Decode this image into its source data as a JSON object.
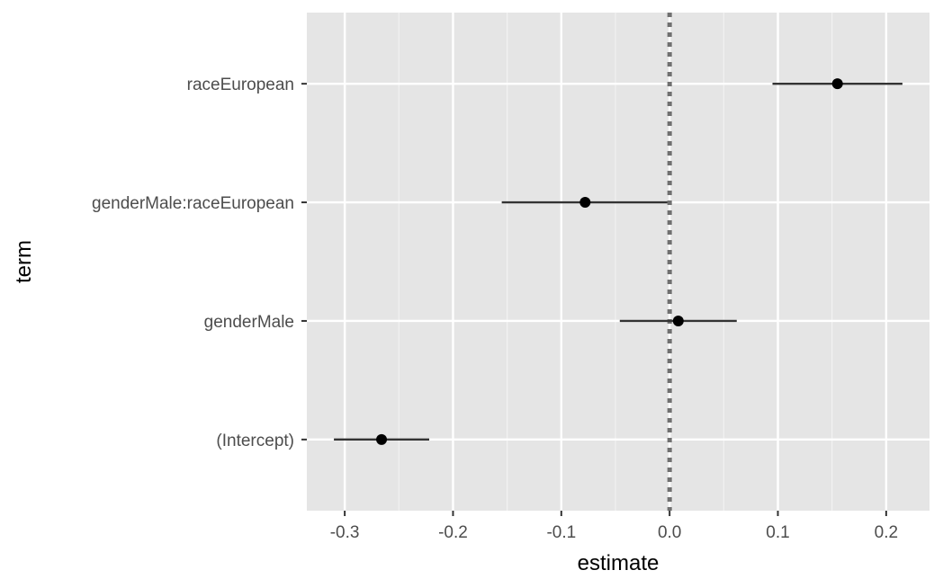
{
  "chart_data": {
    "type": "scatter",
    "xlabel": "estimate",
    "ylabel": "term",
    "xlim": [
      -0.335,
      0.24
    ],
    "x_ticks": [
      -0.3,
      -0.2,
      -0.1,
      0.0,
      0.1,
      0.2
    ],
    "x_tick_labels": [
      "-0.3",
      "-0.2",
      "-0.1",
      "0.0",
      "0.1",
      "0.2"
    ],
    "reference_line": {
      "x": 0,
      "style": "dotted"
    },
    "grid": true,
    "terms": [
      {
        "term": "raceEuropean",
        "estimate": 0.155,
        "conf_low": 0.095,
        "conf_high": 0.215
      },
      {
        "term": "genderMale:raceEuropean",
        "estimate": -0.078,
        "conf_low": -0.155,
        "conf_high": -0.002
      },
      {
        "term": "genderMale",
        "estimate": 0.008,
        "conf_low": -0.046,
        "conf_high": 0.062
      },
      {
        "term": "(Intercept)",
        "estimate": -0.266,
        "conf_low": -0.31,
        "conf_high": -0.222
      }
    ]
  }
}
